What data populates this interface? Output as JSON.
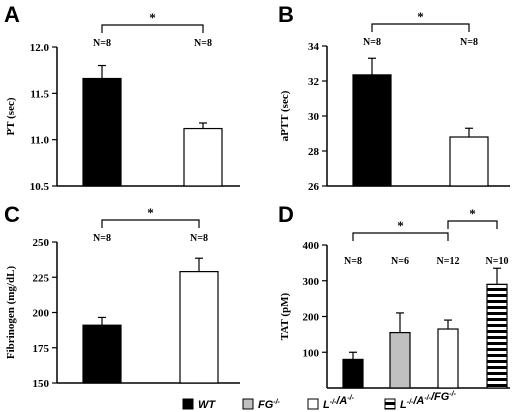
{
  "chart_data": [
    {
      "type": "bar",
      "panel": "A",
      "ylabel": "PT (sec)",
      "ylim": [
        10.5,
        12.0
      ],
      "yticks": [
        10.5,
        11.0,
        11.5,
        12.0
      ],
      "ytick_labels": [
        "10.5",
        "11.0",
        "11.5",
        "12.0"
      ],
      "categories": [
        "WT",
        "L-/-/A-/-"
      ],
      "values": [
        11.66,
        11.12
      ],
      "errors": [
        0.14,
        0.06
      ],
      "fills": [
        "solid",
        "white"
      ],
      "n_labels": [
        "N=8",
        "N=8"
      ],
      "significance": [
        {
          "from": 0,
          "to": 1,
          "label": "*"
        }
      ]
    },
    {
      "type": "bar",
      "panel": "B",
      "ylabel": "aPTT (sec)",
      "ylim": [
        26,
        34
      ],
      "yticks": [
        26,
        28,
        30,
        32,
        34
      ],
      "ytick_labels": [
        "26",
        "28",
        "30",
        "32",
        "34"
      ],
      "categories": [
        "WT",
        "L-/-/A-/-"
      ],
      "values": [
        32.35,
        28.8
      ],
      "errors": [
        0.95,
        0.5
      ],
      "fills": [
        "solid",
        "white"
      ],
      "n_labels": [
        "N=8",
        "N=8"
      ],
      "significance": [
        {
          "from": 0,
          "to": 1,
          "label": "*"
        }
      ]
    },
    {
      "type": "bar",
      "panel": "C",
      "ylabel": "Fibrinogen (mg/dL)",
      "ylim": [
        150,
        250
      ],
      "yticks": [
        150,
        175,
        200,
        225,
        250
      ],
      "ytick_labels": [
        "150",
        "175",
        "200",
        "225",
        "250"
      ],
      "categories": [
        "WT",
        "L-/-/A-/-"
      ],
      "values": [
        191,
        229
      ],
      "errors": [
        5.5,
        9.5
      ],
      "fills": [
        "solid",
        "white"
      ],
      "n_labels": [
        "N=8",
        "N=8"
      ],
      "significance": [
        {
          "from": 0,
          "to": 1,
          "label": "*"
        }
      ]
    },
    {
      "type": "bar",
      "panel": "D",
      "ylabel": "TAT (pM)",
      "ylim": [
        0,
        400
      ],
      "yticks": [
        100,
        200,
        300,
        400
      ],
      "ytick_labels": [
        "100",
        "200",
        "300",
        "400"
      ],
      "categories": [
        "WT",
        "FG-/-",
        "L-/-/A-/-",
        "L-/-/A-/-/FG-/-"
      ],
      "values": [
        80,
        155,
        165,
        290
      ],
      "errors": [
        20,
        55,
        25,
        45
      ],
      "fills": [
        "solid",
        "gray",
        "white",
        "striped"
      ],
      "n_labels": [
        "N=8",
        "N=6",
        "N=12",
        "N=10"
      ],
      "significance": [
        {
          "from": 0,
          "to": 2,
          "label": "*"
        },
        {
          "from": 2,
          "to": 3,
          "label": "*"
        }
      ]
    }
  ],
  "legend": {
    "placement": "bottom",
    "items": [
      {
        "fill": "solid",
        "base": "WT",
        "parts": [
          [
            "WT",
            ""
          ]
        ]
      },
      {
        "fill": "gray",
        "base": "FG-/-",
        "parts": [
          [
            "FG",
            "-/-"
          ]
        ]
      },
      {
        "fill": "white",
        "base": "L-/-/A-/-",
        "parts": [
          [
            "L",
            "-/-"
          ],
          [
            "/A",
            "-/-"
          ]
        ]
      },
      {
        "fill": "striped",
        "base": "L-/-/A-/-/FG-/-",
        "parts": [
          [
            "L",
            "-/-"
          ],
          [
            "/A",
            "-/-"
          ],
          [
            "/FG",
            "-/-"
          ]
        ]
      }
    ]
  },
  "colors": {
    "solid": "#000000",
    "gray": "#c0c0c0",
    "white": "#ffffff",
    "stroke": "#000000"
  }
}
